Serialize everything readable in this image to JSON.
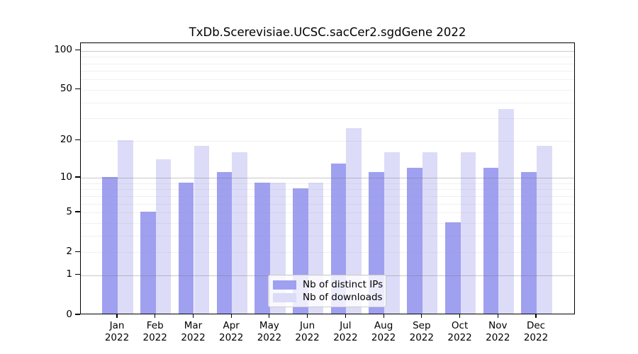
{
  "title": "TxDb.Scerevisiae.UCSC.sacCer2.sgdGene 2022",
  "legend": {
    "items": [
      {
        "label": "Nb of distinct IPs",
        "color": "#a0a0f0"
      },
      {
        "label": "Nb of downloads",
        "color": "#dcdcf8"
      }
    ]
  },
  "chart_data": {
    "type": "bar",
    "title": "TxDb.Scerevisiae.UCSC.sacCer2.sgdGene 2022",
    "categories": [
      "Jan",
      "Feb",
      "Mar",
      "Apr",
      "May",
      "Jun",
      "Jul",
      "Aug",
      "Sep",
      "Oct",
      "Nov",
      "Dec"
    ],
    "category_year_label": "2022",
    "series": [
      {
        "name": "Nb of distinct IPs",
        "color": "#a0a0f0",
        "values": [
          10,
          5,
          9,
          11,
          9,
          8,
          13,
          11,
          12,
          4,
          12,
          11
        ]
      },
      {
        "name": "Nb of downloads",
        "color": "#dcdcf8",
        "values": [
          20,
          14,
          18,
          16,
          9,
          9,
          25,
          16,
          16,
          16,
          35,
          18
        ]
      }
    ],
    "xlabel": "",
    "ylabel": "",
    "yscale": "log1p",
    "ylim": [
      0,
      113
    ],
    "yticks": [
      100,
      50,
      20,
      10,
      5,
      2,
      1,
      0
    ],
    "minor_gridlines": [
      2,
      3,
      4,
      5,
      6,
      7,
      8,
      9,
      20,
      30,
      40,
      50,
      60,
      70,
      80,
      90
    ],
    "major_gridlines": [
      1,
      10,
      100
    ],
    "grid": true,
    "legend_position": "lower center"
  },
  "colors": {
    "background": "#ffffff",
    "axis": "#000000",
    "major_grid": "#c8c8c8",
    "minor_grid": "#ececec",
    "bar_distinct_ips": "#a0a0f0",
    "bar_downloads": "#dcdcf8"
  }
}
